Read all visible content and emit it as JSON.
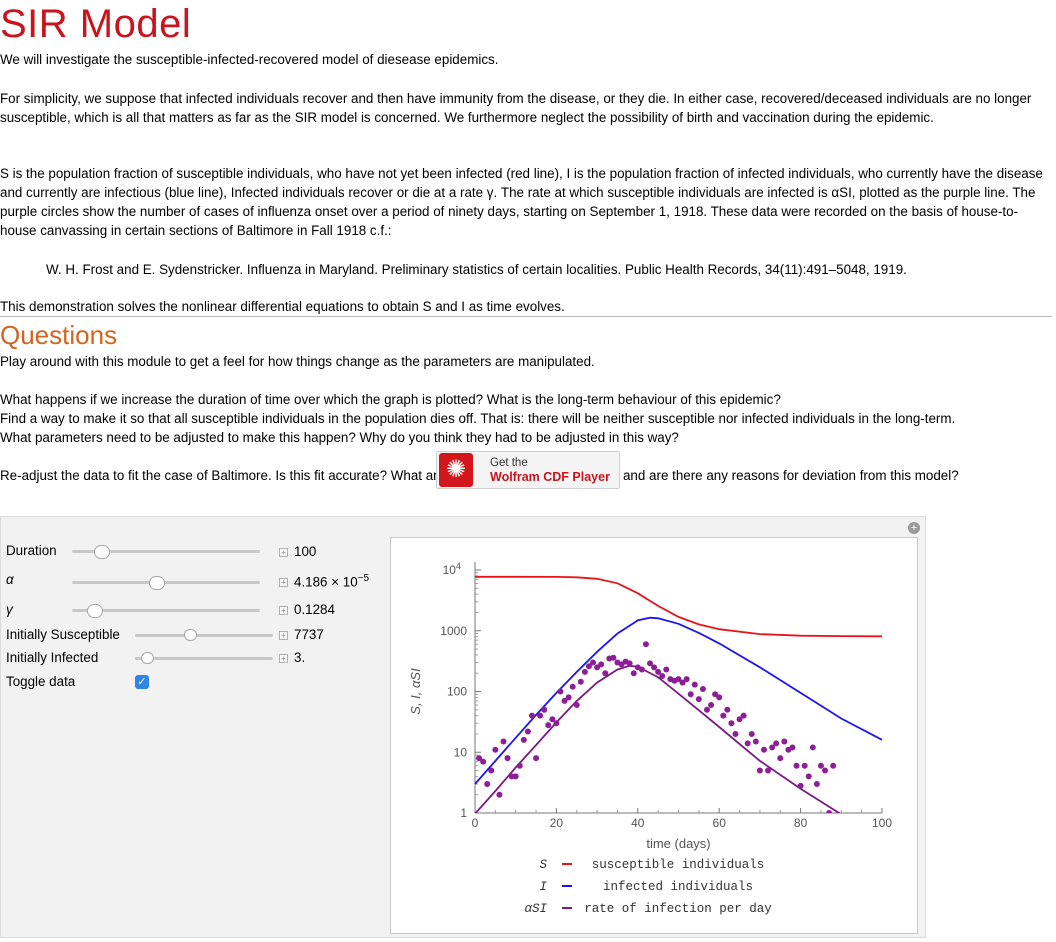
{
  "page": {
    "title": "SIR Model",
    "intro": "We will investigate the susceptible-infected-recovered model of diesease epidemics.",
    "simplicity": "For simplicity, we suppose that infected individuals recover and then have immunity from the disease, or they die. In either case, recovered/deceased individuals are no longer susceptible, which is all that matters as far as the SIR model is concerned. We furthermore neglect the possibility of birth and vaccination during the epidemic.",
    "s_definition": "S is the population fraction of susceptible individuals, who have not yet been infected (red line), I is the population fraction of infected individuals, who currently have the disease and currently are infectious (blue line), Infected individuals recover or die at a rate γ. The rate at which susceptible individuals are infected is αSI, plotted as the purple line. The purple circles show the number of cases of influenza onset over a period of ninety days, starting on September 1, 1918. These data were recorded on the basis of house-to-house canvassing in certain sections of Baltimore in Fall 1918 c.f.:",
    "reference": "W. H. Frost and E. Sydenstricker. Influenza in Maryland. Preliminary statistics of certain localities. Public Health Records, 34(11):491–5048, 1919.",
    "demo": "This demonstration solves the nonlinear differential equations to obtain S and I as time evolves.",
    "questions_title": "Questions",
    "play": "Play around with this module to get a feel for how things change as the parameters are manipulated.",
    "q1": "What happens if we increase the duration of time over which the graph is plotted? What is the long-term behaviour of this epidemic?",
    "q2": "Find a way to make it so that all susceptible individuals in the population dies off. That is: there will be neither susceptible nor infected individuals in the long-term.",
    "q3": "What parameters need to be adjusted to make this happen? Why do you think they had to be adjusted in this way?",
    "readjust": "Re-adjust the data to fit the case of Baltimore. Is this fit accurate? What are the parameters for influenza, and are there any reasons for deviation from this model?"
  },
  "cdf_badge": {
    "get": "Get the",
    "name": "Wolfram CDF Player",
    "logo_icon": "wolfram-spikey-icon"
  },
  "controls": {
    "duration": {
      "label": "Duration",
      "value": "100",
      "position": 0.2
    },
    "alpha": {
      "label": "α",
      "value_mantissa": "4.186 × 10",
      "value_exp": "−5",
      "position": 0.44
    },
    "gamma": {
      "label": "γ",
      "value": "0.1284",
      "position": 0.12
    },
    "susceptible": {
      "label": "Initially Susceptible",
      "value": "7737",
      "position": 0.39
    },
    "infected": {
      "label": "Initially Infected",
      "value": "3.",
      "position": 0.09
    },
    "toggle": {
      "label": "Toggle data",
      "checked": true
    }
  },
  "chart_data": {
    "type": "line",
    "xlabel": "time (days)",
    "ylabel": "S, I, αSI",
    "xlim": [
      0,
      100
    ],
    "ylim": [
      1,
      10000
    ],
    "yscale": "log",
    "x_ticks": [
      "0",
      "20",
      "40",
      "60",
      "80",
      "100"
    ],
    "y_ticks": [
      {
        "value": 1,
        "label": "1"
      },
      {
        "value": 10,
        "label": "10"
      },
      {
        "value": 100,
        "label": "100"
      },
      {
        "value": 1000,
        "label": "1000"
      },
      {
        "value": 10000,
        "label": "10",
        "exponent": "4"
      }
    ],
    "series": [
      {
        "key": "S",
        "color": "#e8141c",
        "x": [
          0,
          10,
          20,
          25,
          30,
          35,
          40,
          45,
          50,
          55,
          60,
          70,
          80,
          90,
          100
        ],
        "y": [
          7740,
          7735,
          7700,
          7580,
          7160,
          6050,
          4130,
          2560,
          1690,
          1270,
          1060,
          880,
          830,
          815,
          810
        ]
      },
      {
        "key": "I",
        "color": "#1e14f0",
        "x": [
          0,
          5,
          10,
          15,
          20,
          25,
          30,
          35,
          40,
          43,
          45,
          50,
          55,
          60,
          70,
          80,
          90,
          100
        ],
        "y": [
          3,
          7.2,
          17.3,
          41,
          95,
          210,
          450,
          900,
          1480,
          1640,
          1600,
          1300,
          920,
          620,
          250,
          95,
          36,
          16
        ]
      },
      {
        "key": "αSI",
        "color": "#7a1a82",
        "x": [
          0,
          5,
          10,
          15,
          20,
          25,
          30,
          35,
          38,
          40,
          45,
          50,
          55,
          60,
          70,
          80,
          90,
          95
        ],
        "y": [
          0.97,
          2.3,
          5.6,
          13.1,
          31,
          70,
          140,
          230,
          265,
          256,
          172,
          92,
          49,
          26,
          7.2,
          2.5,
          0.95,
          0.6
        ]
      }
    ],
    "data_points": {
      "color": "#8c1e96",
      "x": [
        1,
        2,
        3,
        4,
        5,
        6,
        7,
        8,
        9,
        10,
        11,
        12,
        13,
        14,
        15,
        16,
        17,
        18,
        19,
        20,
        21,
        22,
        23,
        24,
        25,
        26,
        27,
        28,
        29,
        30,
        31,
        32,
        33,
        34,
        35,
        36,
        37,
        38,
        39,
        40,
        41,
        42,
        43,
        44,
        45,
        46,
        47,
        48,
        49,
        50,
        51,
        52,
        53,
        54,
        55,
        56,
        57,
        58,
        59,
        60,
        61,
        62,
        63,
        64,
        65,
        66,
        67,
        68,
        69,
        70,
        71,
        72,
        73,
        74,
        75,
        76,
        77,
        78,
        79,
        80,
        81,
        82,
        83,
        84,
        85,
        86,
        87,
        88
      ],
      "y": [
        8,
        7,
        3,
        5,
        11,
        2,
        15,
        8,
        4,
        4,
        6,
        16,
        22,
        40,
        8,
        40,
        50,
        28,
        35,
        30,
        100,
        70,
        80,
        120,
        60,
        145,
        210,
        260,
        300,
        250,
        280,
        200,
        350,
        360,
        300,
        280,
        310,
        290,
        200,
        250,
        230,
        600,
        290,
        250,
        210,
        180,
        230,
        160,
        150,
        160,
        140,
        160,
        90,
        130,
        75,
        110,
        50,
        60,
        90,
        80,
        40,
        50,
        30,
        20,
        35,
        40,
        14,
        20,
        15,
        5,
        11,
        5,
        12,
        14,
        8,
        15,
        11,
        12,
        6,
        2.8,
        6,
        4,
        12,
        3,
        6,
        5,
        1,
        6
      ]
    },
    "legend": [
      {
        "symbol": "S",
        "text": "susceptible individuals",
        "color": "#e8141c"
      },
      {
        "symbol": "I",
        "text": "infected individuals",
        "color": "#1e14f0"
      },
      {
        "symbol": "αSI",
        "text": "rate of infection per day",
        "color": "#7a1a82"
      }
    ],
    "legend_position": "bottom"
  }
}
